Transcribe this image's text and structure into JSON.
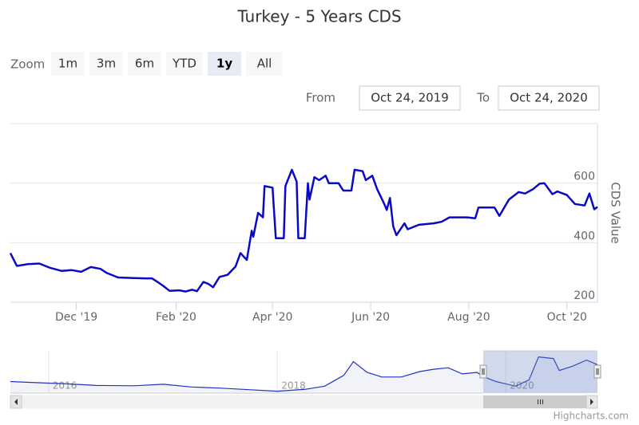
{
  "chart_data": {
    "type": "line",
    "title": "Turkey - 5 Years CDS",
    "range_selector": {
      "label": "Zoom",
      "buttons": [
        "1m",
        "3m",
        "6m",
        "YTD",
        "1y",
        "All"
      ],
      "selected": 4,
      "from_label": "From",
      "from_value": "Oct 24, 2019",
      "to_label": "To",
      "to_value": "Oct 24, 2020"
    },
    "y_axis_label": "CDS Value",
    "xlim": [
      "2019-10-21",
      "2020-10-20"
    ],
    "xticks": [
      {
        "value": "2019-12-01",
        "label": "Dec '19"
      },
      {
        "value": "2020-02-01",
        "label": "Feb '20"
      },
      {
        "value": "2020-04-01",
        "label": "Apr '20"
      },
      {
        "value": "2020-06-01",
        "label": "Jun '20"
      },
      {
        "value": "2020-08-01",
        "label": "Aug '20"
      },
      {
        "value": "2020-10-01",
        "label": "Oct '20"
      }
    ],
    "ylim": [
      200,
      800
    ],
    "yticks": [
      200,
      400,
      600
    ],
    "grid": true,
    "series": [
      {
        "color": "#0a0ac4",
        "x": [
          "2019-10-21",
          "2019-10-25",
          "2019-11-01",
          "2019-11-08",
          "2019-11-15",
          "2019-11-22",
          "2019-11-28",
          "2019-12-04",
          "2019-12-10",
          "2019-12-16",
          "2019-12-20",
          "2019-12-27",
          "2020-01-06",
          "2020-01-13",
          "2020-01-17",
          "2020-01-20",
          "2020-01-24",
          "2020-01-28",
          "2020-02-03",
          "2020-02-07",
          "2020-02-11",
          "2020-02-14",
          "2020-02-18",
          "2020-02-21",
          "2020-02-24",
          "2020-02-28",
          "2020-03-04",
          "2020-03-09",
          "2020-03-12",
          "2020-03-16",
          "2020-03-19",
          "2020-03-20",
          "2020-03-23",
          "2020-03-26",
          "2020-03-27",
          "2020-04-01",
          "2020-04-03",
          "2020-04-08",
          "2020-04-09",
          "2020-04-13",
          "2020-04-16",
          "2020-04-17",
          "2020-04-21",
          "2020-04-23",
          "2020-04-24",
          "2020-04-27",
          "2020-04-30",
          "2020-05-04",
          "2020-05-06",
          "2020-05-12",
          "2020-05-15",
          "2020-05-20",
          "2020-05-22",
          "2020-05-27",
          "2020-05-29",
          "2020-06-02",
          "2020-06-05",
          "2020-06-09",
          "2020-06-11",
          "2020-06-13",
          "2020-06-15",
          "2020-06-17",
          "2020-06-22",
          "2020-06-24",
          "2020-07-01",
          "2020-07-10",
          "2020-07-15",
          "2020-07-20",
          "2020-07-31",
          "2020-08-05",
          "2020-08-07",
          "2020-08-17",
          "2020-08-20",
          "2020-08-26",
          "2020-09-01",
          "2020-09-05",
          "2020-09-10",
          "2020-09-14",
          "2020-09-17",
          "2020-09-22",
          "2020-09-25",
          "2020-10-01",
          "2020-10-06",
          "2020-10-12",
          "2020-10-15",
          "2020-10-18",
          "2020-10-20"
        ],
        "values": [
          365,
          322,
          328,
          330,
          315,
          305,
          308,
          302,
          318,
          312,
          298,
          283,
          281,
          280,
          280,
          270,
          255,
          238,
          240,
          236,
          242,
          237,
          268,
          262,
          250,
          285,
          292,
          320,
          365,
          342,
          440,
          420,
          500,
          485,
          590,
          585,
          415,
          415,
          590,
          645,
          605,
          415,
          415,
          600,
          545,
          620,
          610,
          625,
          600,
          600,
          575,
          575,
          645,
          640,
          610,
          625,
          580,
          535,
          510,
          550,
          455,
          425,
          465,
          445,
          460,
          465,
          470,
          485,
          485,
          482,
          518,
          518,
          490,
          545,
          570,
          565,
          580,
          598,
          600,
          563,
          572,
          560,
          530,
          525,
          565,
          512,
          520
        ]
      }
    ],
    "navigator": {
      "xlim": [
        "2015-09-01",
        "2020-10-20"
      ],
      "xticks": [
        {
          "value": "2016-01-01",
          "label": "2016"
        },
        {
          "value": "2018-01-01",
          "label": "2018"
        },
        {
          "value": "2020-01-01",
          "label": "2020"
        }
      ],
      "ylim": [
        150,
        700
      ],
      "x": [
        "2015-09-01",
        "2015-12-01",
        "2016-03-01",
        "2016-06-01",
        "2016-10-01",
        "2017-01-01",
        "2017-04-01",
        "2017-07-01",
        "2017-10-01",
        "2018-01-01",
        "2018-04-01",
        "2018-06-01",
        "2018-08-01",
        "2018-09-01",
        "2018-10-15",
        "2018-12-01",
        "2019-02-01",
        "2019-04-01",
        "2019-05-15",
        "2019-07-01",
        "2019-08-15",
        "2019-10-01",
        "2019-10-21",
        "2019-12-01",
        "2020-02-01",
        "2020-03-15",
        "2020-04-15",
        "2020-06-01",
        "2020-06-20",
        "2020-08-01",
        "2020-09-15",
        "2020-10-20"
      ],
      "values": [
        300,
        285,
        270,
        250,
        245,
        265,
        230,
        215,
        195,
        175,
        200,
        240,
        380,
        560,
        420,
        360,
        360,
        430,
        460,
        480,
        400,
        420,
        365,
        300,
        240,
        320,
        620,
        600,
        445,
        500,
        580,
        520
      ]
    },
    "credits": "Highcharts.com"
  }
}
